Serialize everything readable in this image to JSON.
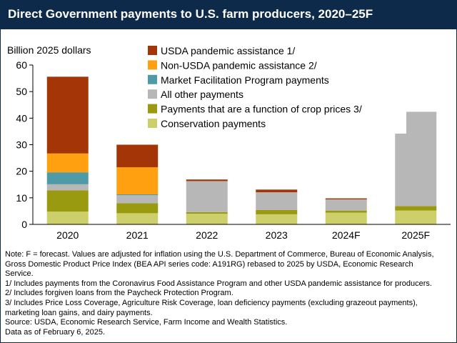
{
  "title": "Direct Government payments to U.S. farm producers, 2020–25F",
  "chart_data": {
    "type": "bar",
    "stacked": true,
    "ylabel": "Billion 2025 dollars",
    "ylim": [
      0,
      60
    ],
    "yticks": [
      0,
      10,
      20,
      30,
      40,
      50,
      60
    ],
    "categories": [
      "2020",
      "2021",
      "2022",
      "2023",
      "2024F",
      "2025F"
    ],
    "legend_position": "top-right",
    "series": [
      {
        "name": "Conservation payments",
        "color": "#cdd06a",
        "values": [
          4.8,
          4.2,
          4.0,
          3.8,
          4.4,
          5.2
        ]
      },
      {
        "name": "Payments that are a function of crop prices 3/",
        "color": "#9a9a10",
        "values": [
          8.0,
          3.8,
          0.6,
          1.6,
          0.8,
          1.7
        ]
      },
      {
        "name": "All other payments",
        "color": "#b7b7b7",
        "values": [
          2.3,
          3.0,
          11.7,
          6.7,
          4.2,
          35.5
        ]
      },
      {
        "name": "Market Facilitation Program payments",
        "color": "#4e9aa7",
        "values": [
          4.5,
          0.3,
          0.0,
          0.0,
          0.0,
          0.0
        ]
      },
      {
        "name": "Non-USDA pandemic assistance 2/",
        "color": "#ffa010",
        "values": [
          7.1,
          10.2,
          0.0,
          0.0,
          0.0,
          0.0
        ]
      },
      {
        "name": "USDA pandemic assistance 1/",
        "color": "#a33506",
        "values": [
          28.9,
          8.5,
          0.6,
          1.0,
          0.4,
          0.0
        ]
      }
    ],
    "legend_order": [
      "USDA pandemic assistance 1/",
      "Non-USDA pandemic assistance 2/",
      "Market Facilitation Program payments",
      "All other payments",
      "Payments that are a function of crop prices 3/",
      "Conservation payments"
    ]
  },
  "notes": [
    "Note: F = forecast. Values are adjusted for inflation using the U.S. Department of Commerce, Bureau of Economic Analysis,",
    "Gross Domestic Product Price Index (BEA API series code: A191RG) rebased to 2025 by USDA, Economic Research",
    "Service.",
    "1/ Includes payments from the Coronavirus Food Assistance Program and other USDA pandemic assistance for producers.",
    "2/ Includes forgiven loans from the Paycheck Protection Program.",
    "3/ Includes Price Loss Coverage, Agriculture Risk Coverage, loan deficiency payments (excluding grazeout payments),",
    "marketing loan gains, and dairy payments.",
    "Source: USDA, Economic Research Service, Farm Income and Wealth Statistics.",
    "Data as of February 6, 2025."
  ]
}
